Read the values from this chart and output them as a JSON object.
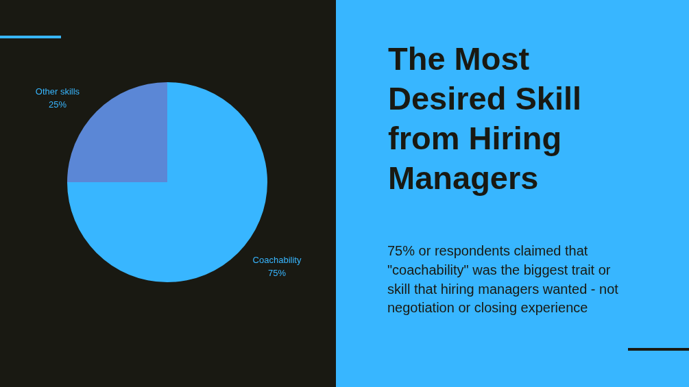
{
  "chart_data": {
    "type": "pie",
    "title": "The Most Desired Skill from Hiring Managers",
    "categories": [
      "Coachability",
      "Other skills"
    ],
    "values": [
      75,
      25
    ],
    "colors": [
      "#38b6ff",
      "#5b87d6"
    ],
    "value_labels": [
      "75%",
      "25%"
    ],
    "annotations": [
      "75% or respondents claimed that \"coachability\" was the biggest trait or skill that hiring managers wanted - not negotiation or closing experience"
    ]
  }
}
